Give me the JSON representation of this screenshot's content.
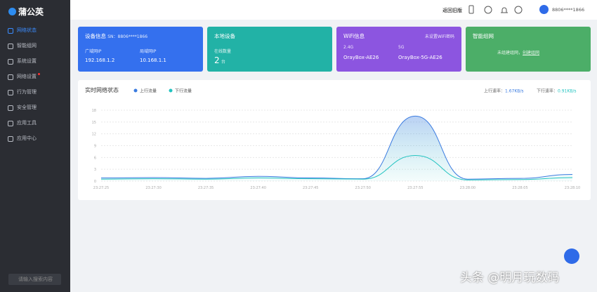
{
  "sidebar": {
    "logo": "蒲公英",
    "menu": [
      "网络状态",
      "智能组网",
      "系统设置",
      "网络设置",
      "行为管理",
      "安全管理",
      "应用工具",
      "应用中心"
    ],
    "search_placeholder": "请输入搜索内容"
  },
  "topbar": {
    "back": "返回旧版",
    "user": "8806****1866"
  },
  "cards": {
    "device": {
      "title": "设备信息",
      "sn": "SN：8806****1866",
      "wan_label": "广域网IP",
      "wan": "192.168.1.2",
      "lan_label": "局域网IP",
      "lan": "10.168.1.1"
    },
    "local": {
      "title": "本地设备",
      "online_label": "在线数量",
      "count": "2",
      "unit": "台"
    },
    "wifi": {
      "title": "WiFi信息",
      "warning": "未设置WiFi密码",
      "band1": "2.4G",
      "ssid1": "OrayBox-AE26",
      "band2": "5G",
      "ssid2": "OrayBox-5G-AE26"
    },
    "mesh": {
      "title": "智能组网",
      "text": "未组建组网，",
      "link": "创建组网"
    }
  },
  "traffic_chart": {
    "type": "line",
    "title": "实时网络状态",
    "categories": [
      "23:27:25",
      "23:27:30",
      "23:27:35",
      "23:27:40",
      "23:27:45",
      "23:27:50",
      "23:27:55",
      "23:28:00",
      "23:28:05",
      "23:28:10"
    ],
    "series": [
      {
        "name": "上行流量",
        "color": "#3a7be0",
        "values": [
          0.8,
          0.9,
          0.7,
          1.2,
          0.8,
          0.6,
          16.5,
          0.5,
          0.7,
          1.7
        ]
      },
      {
        "name": "下行流量",
        "color": "#22c3c0",
        "values": [
          0.5,
          0.6,
          0.5,
          0.8,
          0.6,
          0.5,
          6.5,
          0.3,
          0.4,
          0.9
        ]
      }
    ],
    "ylim": [
      0,
      18
    ],
    "yticks": [
      0,
      3,
      6,
      9,
      12,
      15,
      18
    ],
    "grid": true,
    "rates": [
      {
        "label": "上行速率：",
        "value": "1.67KB/s"
      },
      {
        "label": "下行速率：",
        "value": "0.91KB/s"
      }
    ]
  },
  "watermark": "头条 @明月玩数码"
}
